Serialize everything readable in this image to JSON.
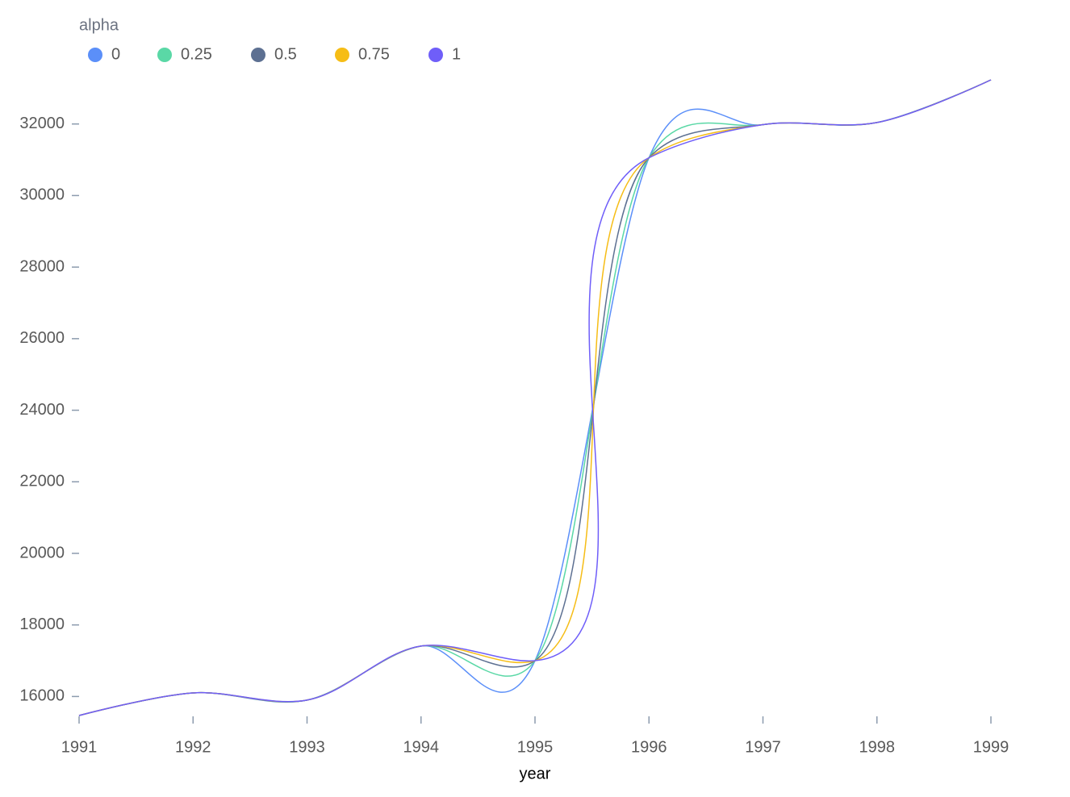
{
  "chart_data": {
    "type": "line",
    "curve": "catmull-rom",
    "legend_title": "alpha",
    "legend_position": "top-left",
    "x_label": "year",
    "x": [
      1991,
      1992,
      1993,
      1994,
      1995,
      1996,
      1997,
      1998,
      1999
    ],
    "xlim": [
      1991,
      1999
    ],
    "xticks": [
      1991,
      1992,
      1993,
      1994,
      1995,
      1996,
      1997,
      1998,
      1999
    ],
    "ylim": [
      15468,
      33233
    ],
    "yticks": [
      16000,
      18000,
      20000,
      22000,
      24000,
      26000,
      28000,
      30000,
      32000
    ],
    "grid": false,
    "series": [
      {
        "name": "0",
        "color": "#5B8FF9",
        "values": [
          15468,
          16100,
          15900,
          17409,
          17000,
          31056,
          31982,
          32040,
          33233
        ]
      },
      {
        "name": "0.25",
        "color": "#5AD8A6",
        "values": [
          15468,
          16100,
          15900,
          17409,
          17000,
          31056,
          31982,
          32040,
          33233
        ]
      },
      {
        "name": "0.5",
        "color": "#5D7092",
        "values": [
          15468,
          16100,
          15900,
          17409,
          17000,
          31056,
          31982,
          32040,
          33233
        ]
      },
      {
        "name": "0.75",
        "color": "#F6BD16",
        "values": [
          15468,
          16100,
          15900,
          17409,
          17000,
          31056,
          31982,
          32040,
          33233
        ]
      },
      {
        "name": "1",
        "color": "#6F5EF9",
        "values": [
          15468,
          16100,
          15900,
          17409,
          17000,
          31056,
          31982,
          32040,
          33233
        ]
      }
    ]
  }
}
